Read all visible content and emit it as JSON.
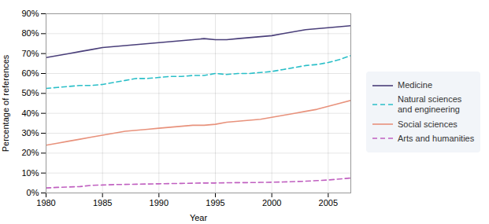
{
  "chart_data": {
    "type": "line",
    "xlabel": "Year",
    "ylabel": "Percentage of references",
    "x": [
      1980,
      1981,
      1982,
      1983,
      1984,
      1985,
      1986,
      1987,
      1988,
      1989,
      1990,
      1991,
      1992,
      1993,
      1994,
      1995,
      1996,
      1997,
      1998,
      1999,
      2000,
      2001,
      2002,
      2003,
      2004,
      2005,
      2006,
      2007
    ],
    "series": [
      {
        "name": "Medicine",
        "color": "#4a3f7a",
        "line_style": "solid",
        "values": [
          68,
          69,
          70,
          71,
          72,
          73,
          73.5,
          74,
          74.5,
          75,
          75.5,
          76,
          76.5,
          77,
          77.5,
          77,
          77,
          77.5,
          78,
          78.5,
          79,
          80,
          81,
          82,
          82.5,
          83,
          83.5,
          84
        ]
      },
      {
        "name": "Natural sciences\nand engineering",
        "color": "#2bbfc8",
        "line_style": "dashed",
        "values": [
          52.5,
          53,
          53.5,
          54,
          54,
          54.5,
          55.5,
          56.5,
          57.5,
          57.5,
          58,
          58.5,
          58.5,
          59,
          59,
          60,
          59.5,
          60,
          60,
          60.5,
          61,
          62,
          63,
          64,
          64.5,
          65.5,
          67,
          69
        ]
      },
      {
        "name": "Social sciences",
        "color": "#e8927c",
        "line_style": "solid",
        "values": [
          24,
          25,
          26,
          27,
          28,
          29,
          30,
          31,
          31.5,
          32,
          32.5,
          33,
          33.5,
          34,
          34,
          34.5,
          35.5,
          36,
          36.5,
          37,
          38,
          39,
          40,
          41,
          42,
          43.5,
          45,
          46.5
        ]
      },
      {
        "name": "Arts and humanities",
        "color": "#c060c0",
        "line_style": "dashed",
        "values": [
          2.5,
          2.8,
          3.0,
          3.2,
          3.8,
          4.0,
          4.2,
          4.3,
          4.4,
          4.5,
          4.6,
          4.7,
          4.8,
          4.9,
          5.0,
          5.0,
          5.1,
          5.2,
          5.2,
          5.3,
          5.4,
          5.5,
          5.7,
          5.9,
          6.2,
          6.5,
          7.0,
          7.5
        ]
      }
    ],
    "xlim": [
      1980,
      2007
    ],
    "xticks": [
      1980,
      1985,
      1990,
      1995,
      2000,
      2005
    ],
    "ylim": [
      0,
      90
    ],
    "yticks": [
      {
        "value": 0,
        "label": "0%"
      },
      {
        "value": 10,
        "label": "10%"
      },
      {
        "value": 20,
        "label": "20%"
      },
      {
        "value": 30,
        "label": "30%"
      },
      {
        "value": 40,
        "label": "40%"
      },
      {
        "value": 50,
        "label": "50%"
      },
      {
        "value": 60,
        "label": "60%"
      },
      {
        "value": 70,
        "label": "70%"
      },
      {
        "value": 80,
        "label": "80%"
      },
      {
        "value": 90,
        "label": "90%"
      }
    ],
    "grid": true,
    "legend": "right"
  }
}
